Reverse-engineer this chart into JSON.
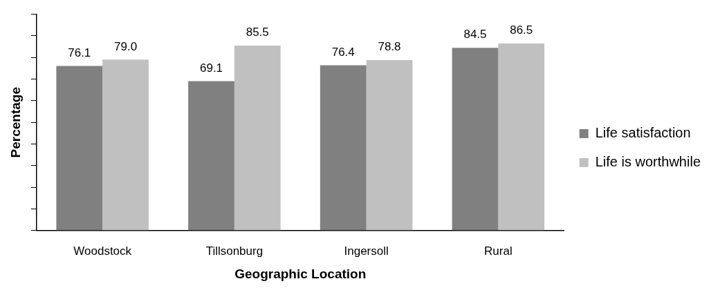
{
  "chart_data": {
    "type": "bar",
    "xlabel": "Geographic Location",
    "ylabel": "Percentage",
    "categories": [
      "Woodstock",
      "Tillsonburg",
      "Ingersoll",
      "Rural"
    ],
    "series": [
      {
        "name": "Life satisfaction",
        "color": "#808080",
        "values": [
          76.1,
          69.1,
          76.4,
          84.5
        ],
        "value_labels": [
          "76.1",
          "69.1",
          "76.4",
          "84.5"
        ]
      },
      {
        "name": "Life is worthwhile",
        "color": "#c0c0c0",
        "values": [
          79.0,
          85.5,
          78.8,
          86.5
        ],
        "value_labels": [
          "79.0",
          "85.5",
          "78.8",
          "86.5"
        ]
      }
    ],
    "ylim": [
      0,
      100
    ],
    "yticks": [
      {
        "value": 0,
        "label": null
      },
      {
        "value": 10,
        "label": null
      },
      {
        "value": 20,
        "label": null
      },
      {
        "value": 30,
        "label": null
      },
      {
        "value": 40,
        "label": null
      },
      {
        "value": 50,
        "label": null
      },
      {
        "value": 60,
        "label": null
      },
      {
        "value": 70,
        "label": null
      },
      {
        "value": 80,
        "label": null
      },
      {
        "value": 90,
        "label": null
      },
      {
        "value": 100,
        "label": null
      }
    ],
    "tick_labels": "x",
    "legend": "right"
  }
}
